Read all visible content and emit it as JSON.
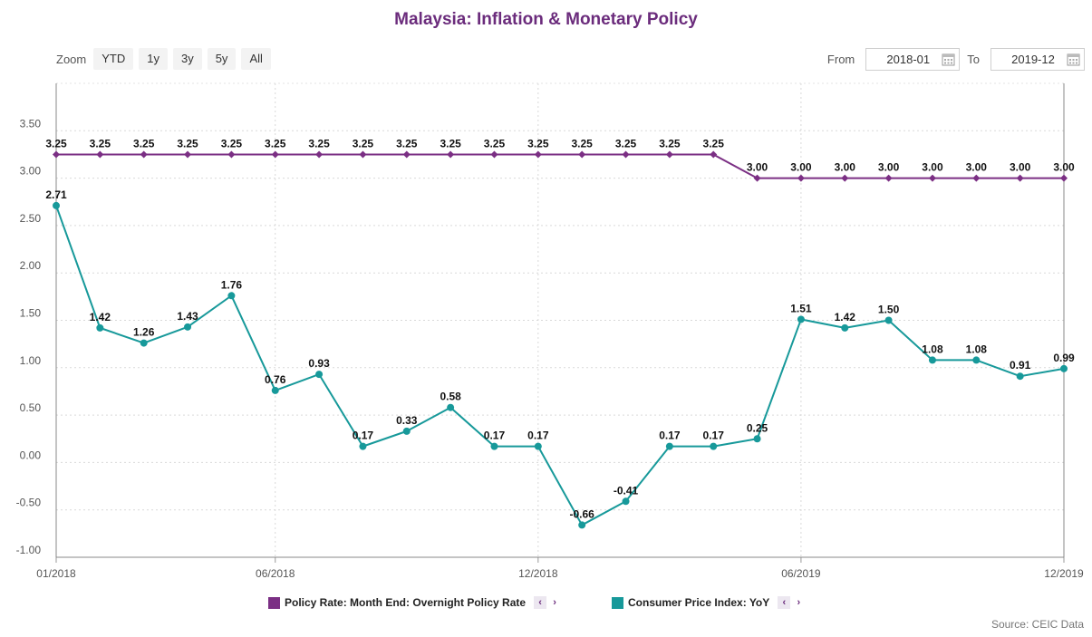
{
  "title": "Malaysia: Inflation & Monetary Policy",
  "zoom": {
    "label": "Zoom",
    "buttons": [
      "YTD",
      "1y",
      "3y",
      "5y",
      "All"
    ]
  },
  "range": {
    "from_label": "From",
    "from_value": "2018-01",
    "to_label": "To",
    "to_value": "2019-12"
  },
  "legend": {
    "policy": {
      "label": "Policy Rate: Month End: Overnight Policy Rate",
      "prev": "‹",
      "next": "›"
    },
    "cpi": {
      "label": "Consumer Price Index: YoY",
      "prev": "‹",
      "next": "›"
    }
  },
  "source": "Source: CEIC Data",
  "colors": {
    "policy": "#7b2f84",
    "cpi": "#17999a",
    "title": "#6b2c7c"
  },
  "chart_data": {
    "type": "line",
    "x": [
      "2018-01",
      "2018-02",
      "2018-03",
      "2018-04",
      "2018-05",
      "2018-06",
      "2018-07",
      "2018-08",
      "2018-09",
      "2018-10",
      "2018-11",
      "2018-12",
      "2019-01",
      "2019-02",
      "2019-03",
      "2019-04",
      "2019-05",
      "2019-06",
      "2019-07",
      "2019-08",
      "2019-09",
      "2019-10",
      "2019-11",
      "2019-12"
    ],
    "x_tick_labels": [
      {
        "index": 0,
        "label": "01/2018"
      },
      {
        "index": 5,
        "label": "06/2018"
      },
      {
        "index": 11,
        "label": "12/2018"
      },
      {
        "index": 17,
        "label": "06/2019"
      },
      {
        "index": 23,
        "label": "12/2019"
      }
    ],
    "y_ticks": [
      "-1.00",
      "-0.50",
      "0.00",
      "0.50",
      "1.00",
      "1.50",
      "2.00",
      "2.50",
      "3.00",
      "3.50"
    ],
    "ylim": [
      -1.0,
      4.0
    ],
    "grid": true,
    "legend_position": "bottom",
    "series": [
      {
        "name": "Policy Rate: Month End: Overnight Policy Rate",
        "key": "policy",
        "marker": "diamond",
        "values": [
          3.25,
          3.25,
          3.25,
          3.25,
          3.25,
          3.25,
          3.25,
          3.25,
          3.25,
          3.25,
          3.25,
          3.25,
          3.25,
          3.25,
          3.25,
          3.25,
          3.0,
          3.0,
          3.0,
          3.0,
          3.0,
          3.0,
          3.0,
          3.0
        ],
        "labels": [
          "3.25",
          "3.25",
          "3.25",
          "3.25",
          "3.25",
          "3.25",
          "3.25",
          "3.25",
          "3.25",
          "3.25",
          "3.25",
          "3.25",
          "3.25",
          "3.25",
          "3.25",
          "3.25",
          "3.00",
          "3.00",
          "3.00",
          "3.00",
          "3.00",
          "3.00",
          "3.00",
          "3.00"
        ]
      },
      {
        "name": "Consumer Price Index: YoY",
        "key": "cpi",
        "marker": "circle",
        "values": [
          2.71,
          1.42,
          1.26,
          1.43,
          1.76,
          0.76,
          0.93,
          0.17,
          0.33,
          0.58,
          0.17,
          0.17,
          -0.66,
          -0.41,
          0.17,
          0.17,
          0.25,
          1.51,
          1.42,
          1.5,
          1.08,
          1.08,
          0.91,
          0.99
        ],
        "labels": [
          "2.71",
          "1.42",
          "1.26",
          "1.43",
          "1.76",
          "0.76",
          "0.93",
          "0.17",
          "0.33",
          "0.58",
          "0.17",
          "0.17",
          "-0.66",
          "-0.41",
          "0.17",
          "0.17",
          "0.25",
          "1.51",
          "1.42",
          "1.50",
          "1.08",
          "1.08",
          "0.91",
          "0.99"
        ]
      }
    ]
  }
}
